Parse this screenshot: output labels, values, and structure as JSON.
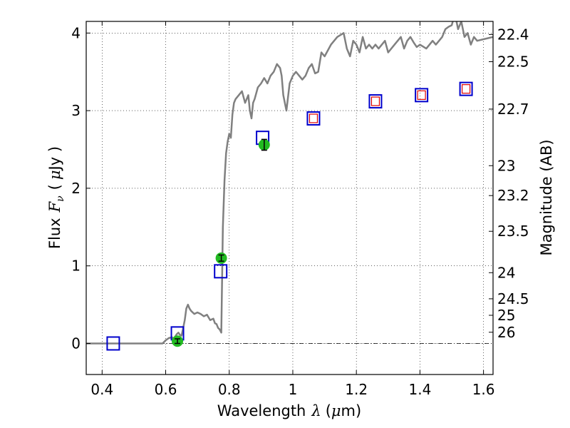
{
  "chart_data": {
    "type": "scatter",
    "xlabel": {
      "pre": "Wavelength",
      "sym": "λ",
      "open": "(",
      "mu": "μ",
      "unit": "m)"
    },
    "ylabel": {
      "pre": "Flux",
      "sym": "F",
      "sub": "ν",
      "open": "(",
      "mu": "μ",
      "unit": "Jy )"
    },
    "y2label": "Magnitude (AB)",
    "xlim": [
      0.35,
      1.63
    ],
    "ylim": [
      -0.4,
      4.15
    ],
    "xticks": [
      {
        "v": 0.4,
        "label": "0.4"
      },
      {
        "v": 0.6,
        "label": "0.6"
      },
      {
        "v": 0.8,
        "label": "0.8"
      },
      {
        "v": 1.0,
        "label": "1"
      },
      {
        "v": 1.2,
        "label": "1.2"
      },
      {
        "v": 1.4,
        "label": "1.4"
      },
      {
        "v": 1.6,
        "label": "1.6"
      }
    ],
    "yticks": [
      {
        "v": 0,
        "label": "0"
      },
      {
        "v": 1,
        "label": "1"
      },
      {
        "v": 2,
        "label": "2"
      },
      {
        "v": 3,
        "label": "3"
      },
      {
        "v": 4,
        "label": "4"
      }
    ],
    "y2ticks": [
      {
        "mag": 22.4,
        "label": "22.4"
      },
      {
        "mag": 22.5,
        "label": "22.5"
      },
      {
        "mag": 22.7,
        "label": "22.7"
      },
      {
        "mag": 23,
        "label": "23"
      },
      {
        "mag": 23.2,
        "label": "23.2"
      },
      {
        "mag": 23.5,
        "label": "23.5"
      },
      {
        "mag": 24,
        "label": "24"
      },
      {
        "mag": 24.5,
        "label": "24.5"
      },
      {
        "mag": 25,
        "label": "25"
      },
      {
        "mag": 26,
        "label": "26"
      }
    ],
    "grid": true,
    "colors": {
      "model_line": "#808080",
      "model_box": "#0000cc",
      "inner_box": "#dd0000",
      "obs_point": "#22bb22",
      "error_bar": "#000000",
      "zero_line": "#000000"
    },
    "series": [
      {
        "type": "line",
        "x": [
          0.35,
          0.59,
          0.6,
          0.61,
          0.62,
          0.625,
          0.63,
          0.635,
          0.64,
          0.645,
          0.65,
          0.655,
          0.66,
          0.665,
          0.67,
          0.675,
          0.68,
          0.69,
          0.7,
          0.71,
          0.72,
          0.73,
          0.74,
          0.75,
          0.755,
          0.76,
          0.765,
          0.77,
          0.775,
          0.78,
          0.785,
          0.79,
          0.795,
          0.8,
          0.805,
          0.81,
          0.815,
          0.82,
          0.83,
          0.84,
          0.85,
          0.86,
          0.865,
          0.87,
          0.875,
          0.88,
          0.89,
          0.9,
          0.91,
          0.92,
          0.93,
          0.94,
          0.95,
          0.96,
          0.965,
          0.97,
          0.98,
          0.99,
          1.0,
          1.01,
          1.02,
          1.03,
          1.04,
          1.05,
          1.06,
          1.07,
          1.08,
          1.09,
          1.1,
          1.12,
          1.14,
          1.16,
          1.17,
          1.18,
          1.19,
          1.2,
          1.21,
          1.22,
          1.23,
          1.24,
          1.25,
          1.26,
          1.27,
          1.28,
          1.29,
          1.3,
          1.32,
          1.34,
          1.35,
          1.36,
          1.37,
          1.38,
          1.39,
          1.4,
          1.42,
          1.44,
          1.45,
          1.46,
          1.47,
          1.48,
          1.49,
          1.5,
          1.51,
          1.52,
          1.53,
          1.54,
          1.55,
          1.56,
          1.57,
          1.58,
          1.6,
          1.63
        ],
        "y": [
          0.0,
          0.0,
          0.04,
          0.07,
          0.08,
          0.06,
          0.09,
          0.12,
          0.14,
          0.11,
          0.1,
          0.2,
          0.3,
          0.45,
          0.5,
          0.45,
          0.42,
          0.38,
          0.4,
          0.38,
          0.35,
          0.37,
          0.3,
          0.32,
          0.26,
          0.25,
          0.2,
          0.18,
          0.14,
          1.5,
          2.1,
          2.45,
          2.6,
          2.7,
          2.65,
          2.95,
          3.1,
          3.15,
          3.2,
          3.25,
          3.1,
          3.2,
          3.0,
          2.9,
          3.1,
          3.15,
          3.3,
          3.35,
          3.42,
          3.35,
          3.45,
          3.5,
          3.6,
          3.55,
          3.45,
          3.2,
          3.0,
          3.35,
          3.45,
          3.5,
          3.45,
          3.4,
          3.45,
          3.55,
          3.6,
          3.48,
          3.5,
          3.75,
          3.7,
          3.85,
          3.95,
          4.0,
          3.8,
          3.7,
          3.9,
          3.85,
          3.75,
          3.95,
          3.8,
          3.85,
          3.8,
          3.85,
          3.8,
          3.85,
          3.9,
          3.75,
          3.85,
          3.95,
          3.8,
          3.9,
          3.95,
          3.88,
          3.82,
          3.85,
          3.8,
          3.9,
          3.85,
          3.9,
          3.95,
          4.05,
          4.08,
          4.1,
          4.25,
          4.05,
          4.15,
          3.95,
          4.0,
          3.85,
          3.95,
          3.9,
          3.92,
          3.95
        ]
      },
      {
        "type": "model_boxes",
        "x": [
          0.435,
          0.637,
          0.773,
          0.905,
          1.065,
          1.26,
          1.405,
          1.545
        ],
        "y": [
          0.0,
          0.13,
          0.93,
          2.65,
          2.9,
          3.12,
          3.2,
          3.28
        ]
      },
      {
        "type": "inner_boxes",
        "x": [
          1.065,
          1.26,
          1.405,
          1.545
        ],
        "y": [
          2.9,
          3.12,
          3.2,
          3.28
        ]
      },
      {
        "type": "observed",
        "x": [
          0.637,
          0.775,
          0.91
        ],
        "y": [
          0.03,
          1.1,
          2.56
        ],
        "yerr": [
          0.03,
          0.04,
          0.07
        ]
      }
    ]
  }
}
